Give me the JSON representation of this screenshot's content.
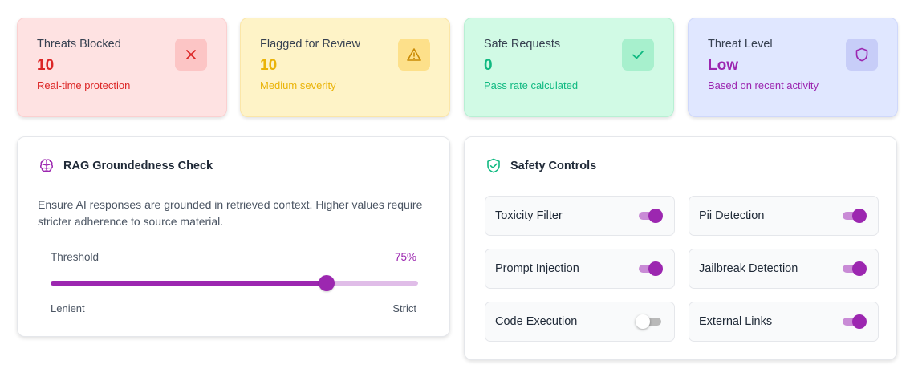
{
  "stats": {
    "threats": {
      "title": "Threats Blocked",
      "value": "10",
      "sub": "Real-time protection",
      "icon": "x-icon",
      "color": "#dc2626"
    },
    "flagged": {
      "title": "Flagged for Review",
      "value": "10",
      "sub": "Medium severity",
      "icon": "warning-triangle-icon",
      "color": "#eab308"
    },
    "safe": {
      "title": "Safe Requests",
      "value": "0",
      "sub": "Pass rate calculated",
      "icon": "check-icon",
      "color": "#10b981"
    },
    "level": {
      "title": "Threat Level",
      "value": "Low",
      "sub": "Based on recent activity",
      "icon": "shield-icon",
      "color": "#9c27b0"
    }
  },
  "rag": {
    "title": "RAG Groundedness Check",
    "description": "Ensure AI responses are grounded in retrieved context. Higher values require stricter adherence to source material.",
    "threshold_label": "Threshold",
    "threshold_value": "75%",
    "threshold_fraction": 0.75,
    "min_label": "Lenient",
    "max_label": "Strict",
    "accent": "#9c27b0"
  },
  "safety": {
    "title": "Safety Controls",
    "controls": [
      {
        "label": "Toxicity Filter",
        "enabled": true
      },
      {
        "label": "Pii Detection",
        "enabled": true
      },
      {
        "label": "Prompt Injection",
        "enabled": true
      },
      {
        "label": "Jailbreak Detection",
        "enabled": true
      },
      {
        "label": "Code Execution",
        "enabled": false
      },
      {
        "label": "External Links",
        "enabled": true
      }
    ]
  }
}
